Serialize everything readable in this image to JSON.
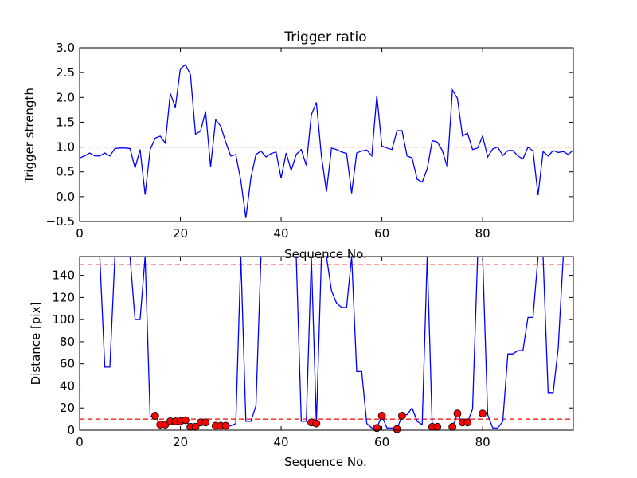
{
  "chart_data": [
    {
      "type": "line",
      "title": "Trigger ratio",
      "xlabel": "Sequence No.",
      "ylabel": "Trigger strength",
      "xlim": [
        0,
        98
      ],
      "ylim": [
        -0.5,
        3.0
      ],
      "xticks": [
        0,
        20,
        40,
        60,
        80
      ],
      "yticks": [
        -0.5,
        0.0,
        0.5,
        1.0,
        1.5,
        2.0,
        2.5,
        3.0
      ],
      "ytick_labels": [
        "−0.5",
        "0.0",
        "0.5",
        "1.0",
        "1.5",
        "2.0",
        "2.5",
        "3.0"
      ],
      "grid": false,
      "series": [
        {
          "color": "#0000ff",
          "x": [
            0,
            1,
            2,
            3,
            4,
            5,
            6,
            7,
            8,
            9,
            10,
            11,
            12,
            13,
            14,
            15,
            16,
            17,
            18,
            19,
            20,
            21,
            22,
            23,
            24,
            25,
            26,
            27,
            28,
            29,
            30,
            31,
            32,
            33,
            34,
            35,
            36,
            37,
            38,
            39,
            40,
            41,
            42,
            43,
            44,
            45,
            46,
            47,
            48,
            49,
            50,
            51,
            52,
            53,
            54,
            55,
            56,
            57,
            58,
            59,
            60,
            61,
            62,
            63,
            64,
            65,
            66,
            67,
            68,
            69,
            70,
            71,
            72,
            73,
            74,
            75,
            76,
            77,
            78,
            79,
            80,
            81,
            82,
            83,
            84,
            85,
            86,
            87,
            88,
            89,
            90,
            91,
            92,
            93,
            94,
            95,
            96,
            97,
            98
          ],
          "y": [
            0.78,
            0.82,
            0.88,
            0.82,
            0.82,
            0.88,
            0.82,
            0.97,
            0.98,
            0.98,
            0.97,
            0.58,
            0.95,
            0.04,
            0.95,
            1.18,
            1.22,
            1.08,
            2.08,
            1.8,
            2.58,
            2.66,
            2.46,
            1.26,
            1.32,
            1.72,
            0.6,
            1.55,
            1.42,
            1.1,
            0.82,
            0.85,
            0.32,
            -0.43,
            0.38,
            0.85,
            0.92,
            0.8,
            0.87,
            0.9,
            0.37,
            0.88,
            0.53,
            0.85,
            0.95,
            0.63,
            1.65,
            1.9,
            0.82,
            0.1,
            0.98,
            0.95,
            0.9,
            0.87,
            0.07,
            0.88,
            0.92,
            0.94,
            0.82,
            2.04,
            1.02,
            0.98,
            0.95,
            1.33,
            1.33,
            0.82,
            0.78,
            0.35,
            0.29,
            0.56,
            1.13,
            1.1,
            0.93,
            0.59,
            2.15,
            1.98,
            1.22,
            1.28,
            0.95,
            0.98,
            1.22,
            0.8,
            0.96,
            1.0,
            0.83,
            0.93,
            0.93,
            0.82,
            0.76,
            1.0,
            0.92,
            0.03,
            0.91,
            0.82,
            0.93,
            0.89,
            0.91,
            0.85,
            0.94
          ]
        }
      ],
      "hlines": [
        {
          "y": 1.0,
          "color": "#ff0000",
          "style": "dashed"
        }
      ]
    },
    {
      "type": "line",
      "title": "",
      "xlabel": "Sequence No.",
      "ylabel": "Distance [pix]",
      "xlim": [
        0,
        98
      ],
      "ylim": [
        0,
        157
      ],
      "xticks": [
        0,
        20,
        40,
        60,
        80
      ],
      "yticks": [
        0,
        20,
        40,
        60,
        80,
        100,
        120,
        140
      ],
      "grid": false,
      "series": [
        {
          "color": "#0000ff",
          "x": [
            4,
            5,
            6,
            7,
            10,
            11,
            12,
            13,
            14,
            15,
            16,
            17,
            18,
            19,
            20,
            21,
            22,
            23,
            24,
            25,
            26,
            27,
            28,
            29,
            30,
            31,
            32,
            33,
            34,
            35,
            36,
            43,
            44,
            45,
            46,
            47,
            48,
            49,
            50,
            51,
            52,
            53,
            54,
            55,
            56,
            57,
            58,
            59,
            60,
            61,
            62,
            63,
            64,
            65,
            66,
            67,
            68,
            69,
            70,
            71,
            72,
            73,
            74,
            75,
            76,
            77,
            78,
            79,
            80,
            81,
            82,
            83,
            84,
            85,
            86,
            87,
            88,
            89,
            90,
            91,
            92,
            93,
            94,
            95,
            96,
            97
          ],
          "y": [
            157,
            57,
            57,
            157,
            157,
            100,
            100,
            157,
            12,
            13,
            5,
            5,
            8,
            8,
            8,
            9,
            3,
            3,
            7,
            7,
            null,
            4,
            4,
            4,
            4,
            6,
            157,
            8,
            8,
            22,
            157,
            157,
            8,
            8,
            157,
            6,
            157,
            157,
            126,
            115,
            111,
            111,
            157,
            53,
            53,
            6,
            2,
            2,
            13,
            2,
            2,
            1,
            13,
            14,
            20,
            8,
            5,
            157,
            3,
            3,
            null,
            null,
            3,
            14,
            7,
            7,
            19,
            157,
            157,
            14,
            2,
            2,
            8,
            69,
            69,
            72,
            72,
            102,
            102,
            157,
            157,
            34,
            34,
            74,
            157,
            157
          ],
          "markers": {
            "color": "#ff0000",
            "x": [
              15,
              16,
              17,
              18,
              19,
              20,
              21,
              22,
              23,
              24,
              25,
              27,
              28,
              29,
              46,
              47,
              59,
              60,
              63,
              64,
              70,
              71,
              74,
              75,
              76,
              77,
              80
            ],
            "y": [
              13,
              5,
              5,
              8,
              8,
              8,
              9,
              3,
              3,
              7,
              7,
              4,
              4,
              4,
              7,
              6,
              2,
              13,
              1,
              13,
              3,
              3,
              3,
              15,
              7,
              7,
              15
            ]
          }
        }
      ],
      "hlines": [
        {
          "y": 150,
          "color": "#ff0000",
          "style": "dashed"
        },
        {
          "y": 10,
          "color": "#ff0000",
          "style": "dashed"
        }
      ]
    }
  ]
}
